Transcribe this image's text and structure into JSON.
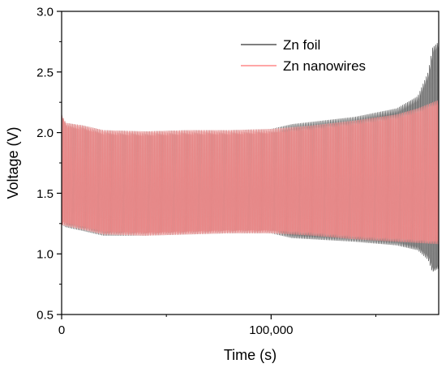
{
  "chart_data": {
    "type": "line",
    "title": "",
    "xlabel": "Time (s)",
    "ylabel": "Voltage (V)",
    "xlim": [
      0,
      180000
    ],
    "ylim": [
      0.5,
      3.0
    ],
    "x_ticks": [
      0,
      100000
    ],
    "x_tick_labels": [
      "0",
      "100,000"
    ],
    "y_ticks": [
      0.5,
      1.0,
      1.5,
      2.0,
      2.5,
      3.0
    ],
    "y_tick_labels": [
      "0.5",
      "1.0",
      "1.5",
      "2.0",
      "2.5",
      "3.0"
    ],
    "grid": false,
    "legend_position": "top-right",
    "series": [
      {
        "name": "Zn foil",
        "color": "#555555",
        "curve": "voltage oscillates each cycle between an upper and lower envelope",
        "upper_envelope": {
          "x": [
            0,
            2000,
            10000,
            20000,
            40000,
            60000,
            80000,
            100000,
            110000,
            120000,
            140000,
            160000,
            170000,
            175000,
            177000,
            180000
          ],
          "y": [
            2.15,
            2.08,
            2.06,
            2.02,
            2.01,
            2.02,
            2.02,
            2.03,
            2.07,
            2.09,
            2.13,
            2.2,
            2.3,
            2.5,
            2.7,
            2.75
          ]
        },
        "lower_envelope": {
          "x": [
            0,
            2000,
            10000,
            20000,
            40000,
            60000,
            80000,
            100000,
            110000,
            120000,
            140000,
            160000,
            170000,
            175000,
            177000,
            180000
          ],
          "y": [
            1.24,
            1.22,
            1.19,
            1.15,
            1.15,
            1.16,
            1.17,
            1.17,
            1.13,
            1.12,
            1.1,
            1.07,
            1.03,
            0.95,
            0.85,
            0.88
          ]
        }
      },
      {
        "name": "Zn nanowires",
        "color": "#ff8a8a",
        "curve": "voltage oscillates each cycle between an upper and lower envelope",
        "upper_envelope": {
          "x": [
            0,
            2000,
            10000,
            20000,
            40000,
            60000,
            80000,
            100000,
            120000,
            140000,
            160000,
            170000,
            180000
          ],
          "y": [
            2.15,
            2.08,
            2.06,
            2.02,
            2.01,
            2.02,
            2.02,
            2.03,
            2.06,
            2.1,
            2.15,
            2.2,
            2.27
          ]
        },
        "lower_envelope": {
          "x": [
            0,
            2000,
            10000,
            20000,
            40000,
            60000,
            80000,
            100000,
            120000,
            140000,
            160000,
            170000,
            180000
          ],
          "y": [
            1.24,
            1.23,
            1.2,
            1.16,
            1.15,
            1.16,
            1.17,
            1.17,
            1.15,
            1.12,
            1.1,
            1.09,
            1.08
          ]
        }
      }
    ]
  }
}
